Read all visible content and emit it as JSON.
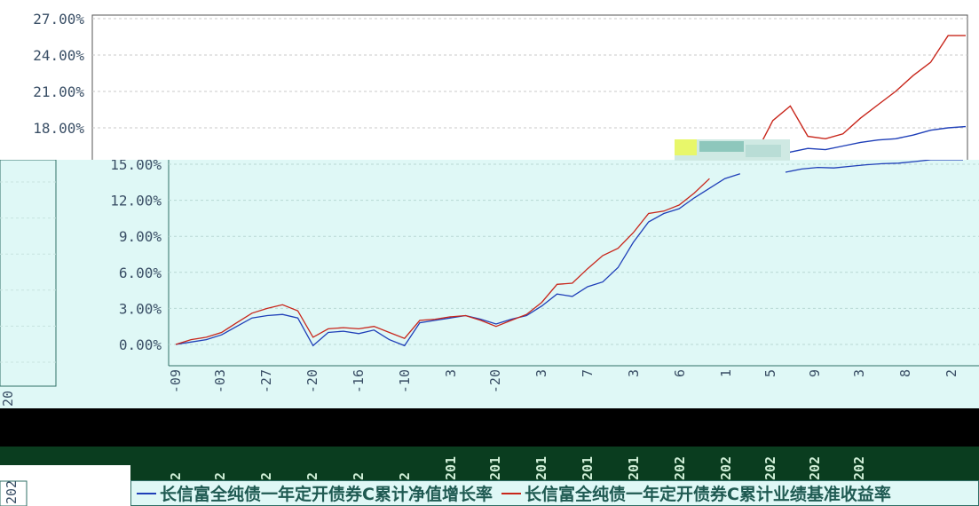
{
  "chart_data": {
    "type": "line",
    "y_ticks": [
      "0.00%",
      "3.00%",
      "6.00%",
      "9.00%",
      "12.00%",
      "15.00%",
      "18.00%",
      "21.00%",
      "24.00%",
      "27.00%"
    ],
    "x_tick_fragments": [
      "-09",
      "-03",
      "-27",
      "-20",
      "-16",
      "-10",
      "3",
      "-20",
      "3",
      "7",
      "3",
      "6",
      "1",
      "5",
      "9",
      "3",
      "8",
      "2"
    ],
    "lower_x_labels": [
      "2",
      "2",
      "2",
      "2",
      "2",
      "2",
      "201",
      "201",
      "201",
      "201",
      "201",
      "202",
      "202",
      "202",
      "202",
      "202"
    ],
    "left_fragments": [
      "202",
      "20"
    ],
    "series": [
      {
        "name": "长信富全纯债一年定开债券C累计净值增长率",
        "color": "#1f3fb8",
        "values": [
          0,
          0.2,
          0.4,
          0.8,
          1.5,
          2.2,
          2.4,
          2.5,
          2.2,
          -0.1,
          1.0,
          1.1,
          0.9,
          1.2,
          0.4,
          -0.1,
          1.8,
          2.0,
          2.2,
          2.4,
          2.1,
          1.7,
          2.1,
          2.4,
          3.2,
          4.2,
          4.0,
          4.8,
          5.2,
          6.4,
          8.5,
          10.2,
          10.9,
          11.3,
          12.2,
          13.0,
          13.8,
          14.2,
          15.4,
          16.0,
          16.3,
          16.2,
          16.5,
          16.8,
          17.0,
          17.1,
          17.4,
          17.8,
          18.0,
          18.1
        ]
      },
      {
        "name": "长信富全纯债一年定开债券C累计业绩基准收益率",
        "color": "#c8261b",
        "values": [
          0,
          0.4,
          0.6,
          1.0,
          1.8,
          2.6,
          3.0,
          3.3,
          2.8,
          0.6,
          1.3,
          1.4,
          1.3,
          1.5,
          1.0,
          0.5,
          2.0,
          2.1,
          2.3,
          2.4,
          2.0,
          1.5,
          2.0,
          2.5,
          3.5,
          5.0,
          5.1,
          6.3,
          7.4,
          8.0,
          9.3,
          10.9,
          11.1,
          11.6,
          12.6,
          13.8,
          14.4,
          15.8,
          18.6,
          19.8,
          17.3,
          17.1,
          17.5,
          18.8,
          19.9,
          21.0,
          22.3,
          23.4,
          25.6,
          25.6
        ]
      }
    ],
    "ylim": [
      0,
      27
    ],
    "grid": true,
    "legend_position": "bottom"
  }
}
